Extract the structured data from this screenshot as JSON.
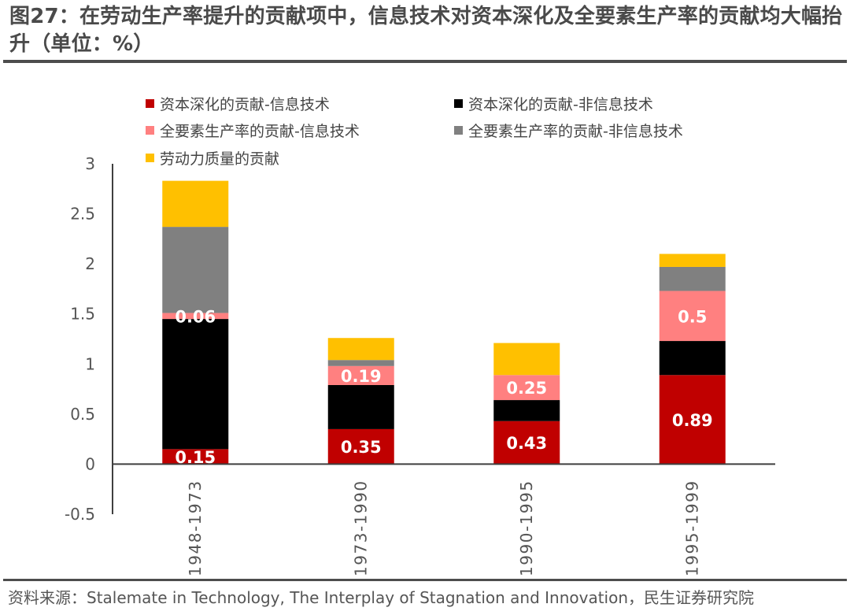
{
  "title": "图27：在劳动生产率提升的贡献项中，信息技术对资本深化及全要素生产率的贡献均大幅抬升（单位：%）",
  "source": "资料来源：Stalemate in Technology, The Interplay of Stagnation and Innovation，民生证券研究院",
  "chart_data": {
    "type": "bar",
    "stacked": true,
    "title": "在劳动生产率提升的贡献项中，信息技术对资本深化及全要素生产率的贡献均大幅抬升（单位：%）",
    "xlabel": "",
    "ylabel": "",
    "ylim": [
      -0.5,
      3
    ],
    "yticks": [
      -0.5,
      0,
      0.5,
      1,
      1.5,
      2,
      2.5,
      3
    ],
    "ytick_labels": [
      "-0.5",
      "0",
      "0.5",
      "1",
      "1.5",
      "2",
      "2.5",
      "3"
    ],
    "grid": false,
    "legend_position": "top",
    "categories": [
      "1948-1973",
      "1973-1990",
      "1990-1995",
      "1995-1999"
    ],
    "series": [
      {
        "name": "资本深化的贡献-信息技术",
        "color": "#C00000",
        "values": [
          0.15,
          0.35,
          0.43,
          0.89
        ],
        "labels": [
          "0.15",
          "0.35",
          "0.43",
          "0.89"
        ]
      },
      {
        "name": "资本深化的贡献-非信息技术",
        "color": "#000000",
        "values": [
          1.3,
          0.44,
          0.21,
          0.34
        ],
        "labels": null
      },
      {
        "name": "全要素生产率的贡献-信息技术",
        "color": "#FF8080",
        "values": [
          0.06,
          0.19,
          0.25,
          0.5
        ],
        "labels": [
          "0.06",
          "0.19",
          "0.25",
          "0.5"
        ]
      },
      {
        "name": "全要素生产率的贡献-非信息技术",
        "color": "#808080",
        "values": [
          0.86,
          0.06,
          0.0,
          0.24
        ],
        "labels": null
      },
      {
        "name": "劳动力质量的贡献",
        "color": "#FFC000",
        "values": [
          0.46,
          0.22,
          0.32,
          0.13
        ],
        "labels": null
      }
    ]
  }
}
